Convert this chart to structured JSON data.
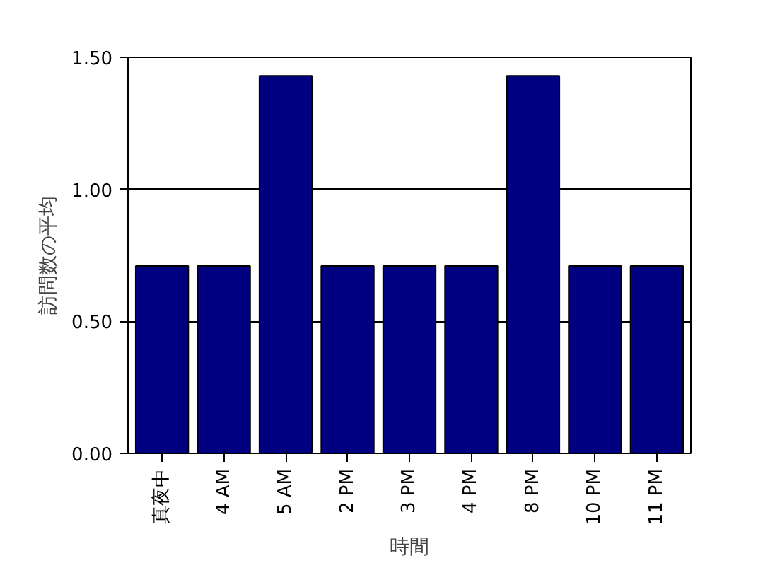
{
  "chart_data": {
    "type": "bar",
    "xlabel": "時間",
    "ylabel": "訪問数の平均",
    "categories": [
      "真夜中",
      "4 AM",
      "5 AM",
      "2 PM",
      "3 PM",
      "4 PM",
      "8 PM",
      "10 PM",
      "11 PM"
    ],
    "values": [
      0.71,
      0.71,
      1.43,
      0.71,
      0.71,
      0.71,
      1.43,
      0.71,
      0.71
    ],
    "color": "#000080",
    "ylim": [
      0,
      1.5
    ],
    "yticks": [
      {
        "value": 0,
        "label": "0.00"
      },
      {
        "value": 0.5,
        "label": "0.50"
      },
      {
        "value": 1.0,
        "label": "1.00"
      },
      {
        "value": 1.5,
        "label": "1.50"
      }
    ],
    "grid": "y"
  }
}
